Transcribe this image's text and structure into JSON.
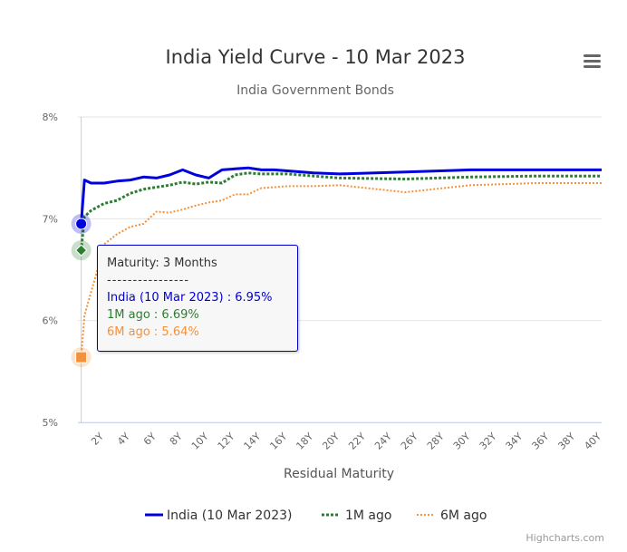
{
  "menu_icon": "hamburger-menu-icon",
  "credits": "Highcharts.com",
  "tooltip": {
    "title": "Maturity: 3 Months",
    "separator": "----------------",
    "india": "India (10 Mar 2023) : 6.95%",
    "m1": "1M ago : 6.69%",
    "m6": "6M ago : 5.64%"
  },
  "colors": {
    "india": "#0000dd",
    "m1": "#2e7d32",
    "m6": "#f5913a"
  },
  "chart_data": {
    "type": "line",
    "title": "India Yield Curve - 10 Mar 2023",
    "subtitle": "India Government Bonds",
    "xlabel": "Residual Maturity",
    "ylabel": "",
    "x_unit": "years",
    "xlim": [
      0,
      40
    ],
    "ylim": [
      5,
      8
    ],
    "yticks": [
      5,
      6,
      7,
      8
    ],
    "ytick_labels": [
      "5%",
      "6%",
      "7%",
      "8%"
    ],
    "xticks": [
      2,
      4,
      6,
      8,
      10,
      12,
      14,
      16,
      18,
      20,
      22,
      24,
      26,
      28,
      30,
      32,
      34,
      36,
      38,
      40
    ],
    "xtick_labels": [
      "2Y",
      "4Y",
      "6Y",
      "8Y",
      "10Y",
      "12Y",
      "14Y",
      "16Y",
      "18Y",
      "20Y",
      "22Y",
      "24Y",
      "26Y",
      "28Y",
      "30Y",
      "32Y",
      "34Y",
      "36Y",
      "38Y",
      "40Y"
    ],
    "grid": true,
    "legend_position": "bottom",
    "highlighted_x": 0.25,
    "series": [
      {
        "name": "India (10 Mar 2023)",
        "style": "solid",
        "x": [
          0.25,
          0.5,
          1,
          2,
          3,
          4,
          5,
          6,
          7,
          8,
          9,
          10,
          11,
          12,
          13,
          14,
          15,
          16,
          18,
          20,
          25,
          30,
          35,
          40
        ],
        "values": [
          6.95,
          7.38,
          7.35,
          7.35,
          7.37,
          7.38,
          7.41,
          7.4,
          7.43,
          7.48,
          7.43,
          7.4,
          7.48,
          7.49,
          7.5,
          7.48,
          7.48,
          7.47,
          7.45,
          7.44,
          7.46,
          7.48,
          7.48,
          7.48
        ]
      },
      {
        "name": "1M ago",
        "style": "dotted",
        "x": [
          0.25,
          0.5,
          1,
          2,
          3,
          4,
          5,
          6,
          7,
          8,
          9,
          10,
          11,
          12,
          13,
          14,
          15,
          16,
          18,
          20,
          25,
          30,
          35,
          40
        ],
        "values": [
          6.69,
          7.02,
          7.08,
          7.15,
          7.18,
          7.25,
          7.29,
          7.31,
          7.33,
          7.36,
          7.34,
          7.36,
          7.35,
          7.43,
          7.45,
          7.44,
          7.44,
          7.44,
          7.42,
          7.4,
          7.39,
          7.41,
          7.42,
          7.42
        ]
      },
      {
        "name": "6M ago",
        "style": "dotted",
        "x": [
          0.25,
          0.5,
          1,
          1.5,
          2,
          3,
          4,
          5,
          6,
          7,
          8,
          9,
          10,
          11,
          12,
          13,
          14,
          15,
          16,
          18,
          20,
          25,
          30,
          35,
          40
        ],
        "values": [
          5.64,
          6.05,
          6.28,
          6.5,
          6.75,
          6.85,
          6.92,
          6.95,
          7.07,
          7.06,
          7.09,
          7.13,
          7.16,
          7.18,
          7.24,
          7.24,
          7.3,
          7.31,
          7.32,
          7.32,
          7.33,
          7.26,
          7.33,
          7.35,
          7.35
        ]
      }
    ]
  }
}
